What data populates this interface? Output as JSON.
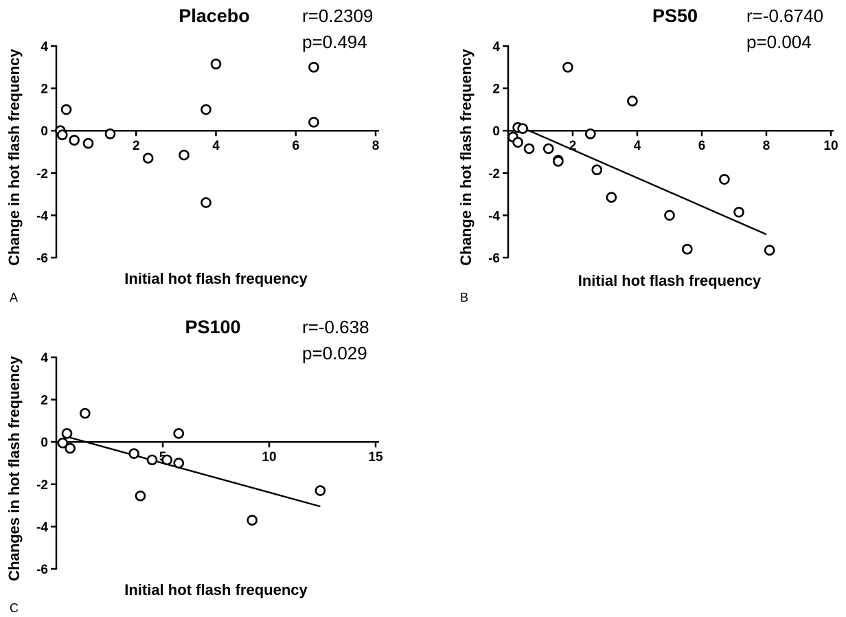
{
  "chart_data": [
    {
      "type": "scatter",
      "panel_label": "A",
      "title": "Placebo",
      "stats": {
        "r": "r=0.2309",
        "p": "p=0.494"
      },
      "xlabel": "Initial hot flash frequency",
      "ylabel": "Change in hot flash frequency",
      "xlim": [
        0,
        8
      ],
      "ylim": [
        -6,
        4
      ],
      "x_ticks": [
        2,
        4,
        6,
        8
      ],
      "x_tick_labels": [
        "2",
        "4",
        "6",
        "8"
      ],
      "y_ticks": [
        4,
        2,
        0,
        -2,
        -4,
        -6
      ],
      "y_tick_labels": [
        "4",
        "2",
        "0",
        "-2",
        "-4",
        "-6"
      ],
      "regression_line": null,
      "points": [
        {
          "x": 0.1,
          "y": 0.0
        },
        {
          "x": 0.15,
          "y": -0.2
        },
        {
          "x": 0.25,
          "y": 1.0
        },
        {
          "x": 0.45,
          "y": -0.45
        },
        {
          "x": 0.8,
          "y": -0.6
        },
        {
          "x": 1.35,
          "y": -0.15
        },
        {
          "x": 2.3,
          "y": -1.3
        },
        {
          "x": 3.2,
          "y": -1.15
        },
        {
          "x": 3.75,
          "y": 1.0
        },
        {
          "x": 3.75,
          "y": -3.4
        },
        {
          "x": 4.0,
          "y": 3.15
        },
        {
          "x": 6.45,
          "y": 3.0
        },
        {
          "x": 6.45,
          "y": 0.4
        }
      ]
    },
    {
      "type": "scatter",
      "panel_label": "B",
      "title": "PS50",
      "stats": {
        "r": "r=-0.6740",
        "p": "p=0.004"
      },
      "xlabel": "Initial hot flash frequency",
      "ylabel": "Change in hot flash frequency",
      "xlim": [
        0,
        10
      ],
      "ylim": [
        -6,
        4
      ],
      "x_ticks": [
        2,
        4,
        6,
        8,
        10
      ],
      "x_tick_labels": [
        "2",
        "4",
        "6",
        "8",
        "10"
      ],
      "y_ticks": [
        4,
        2,
        0,
        -2,
        -4,
        -6
      ],
      "y_tick_labels": [
        "4",
        "2",
        "0",
        "-2",
        "-4",
        "-6"
      ],
      "regression_line": {
        "x1": 0.2,
        "y1": 0.3,
        "x2": 8.0,
        "y2": -4.9
      },
      "points": [
        {
          "x": 0.15,
          "y": -0.3
        },
        {
          "x": 0.3,
          "y": 0.15
        },
        {
          "x": 0.3,
          "y": -0.55
        },
        {
          "x": 0.45,
          "y": 0.1
        },
        {
          "x": 0.65,
          "y": -0.85
        },
        {
          "x": 1.25,
          "y": -0.85
        },
        {
          "x": 1.55,
          "y": -1.4
        },
        {
          "x": 1.55,
          "y": -1.45
        },
        {
          "x": 1.85,
          "y": 3.0
        },
        {
          "x": 2.55,
          "y": -0.15
        },
        {
          "x": 2.75,
          "y": -1.85
        },
        {
          "x": 3.2,
          "y": -3.15
        },
        {
          "x": 3.85,
          "y": 1.4
        },
        {
          "x": 5.0,
          "y": -4.0
        },
        {
          "x": 5.55,
          "y": -5.6
        },
        {
          "x": 6.7,
          "y": -2.3
        },
        {
          "x": 7.15,
          "y": -3.85
        },
        {
          "x": 8.1,
          "y": -5.65
        }
      ]
    },
    {
      "type": "scatter",
      "panel_label": "C",
      "title": "PS100",
      "stats": {
        "r": "r=-0.638",
        "p": "p=0.029"
      },
      "xlabel": "Initial hot flash frequency",
      "ylabel": "Changes in hot flash frequency",
      "xlim": [
        0,
        15
      ],
      "ylim": [
        -6,
        4
      ],
      "x_ticks": [
        5,
        10,
        15
      ],
      "x_tick_labels": [
        "5",
        "10",
        "15"
      ],
      "y_ticks": [
        4,
        2,
        0,
        -2,
        -4,
        -6
      ],
      "y_tick_labels": [
        "4",
        "2",
        "0",
        "-2",
        "-4",
        "-6"
      ],
      "regression_line": {
        "x1": 0.3,
        "y1": 0.3,
        "x2": 12.4,
        "y2": -3.05
      },
      "points": [
        {
          "x": 0.3,
          "y": -0.05
        },
        {
          "x": 0.5,
          "y": 0.4
        },
        {
          "x": 0.65,
          "y": -0.3
        },
        {
          "x": 1.35,
          "y": 1.35
        },
        {
          "x": 3.65,
          "y": -0.55
        },
        {
          "x": 3.95,
          "y": -2.55
        },
        {
          "x": 4.5,
          "y": -0.85
        },
        {
          "x": 5.2,
          "y": -0.85
        },
        {
          "x": 5.75,
          "y": 0.4
        },
        {
          "x": 5.75,
          "y": -1.0
        },
        {
          "x": 9.2,
          "y": -3.7
        },
        {
          "x": 12.4,
          "y": -2.3
        }
      ]
    }
  ]
}
